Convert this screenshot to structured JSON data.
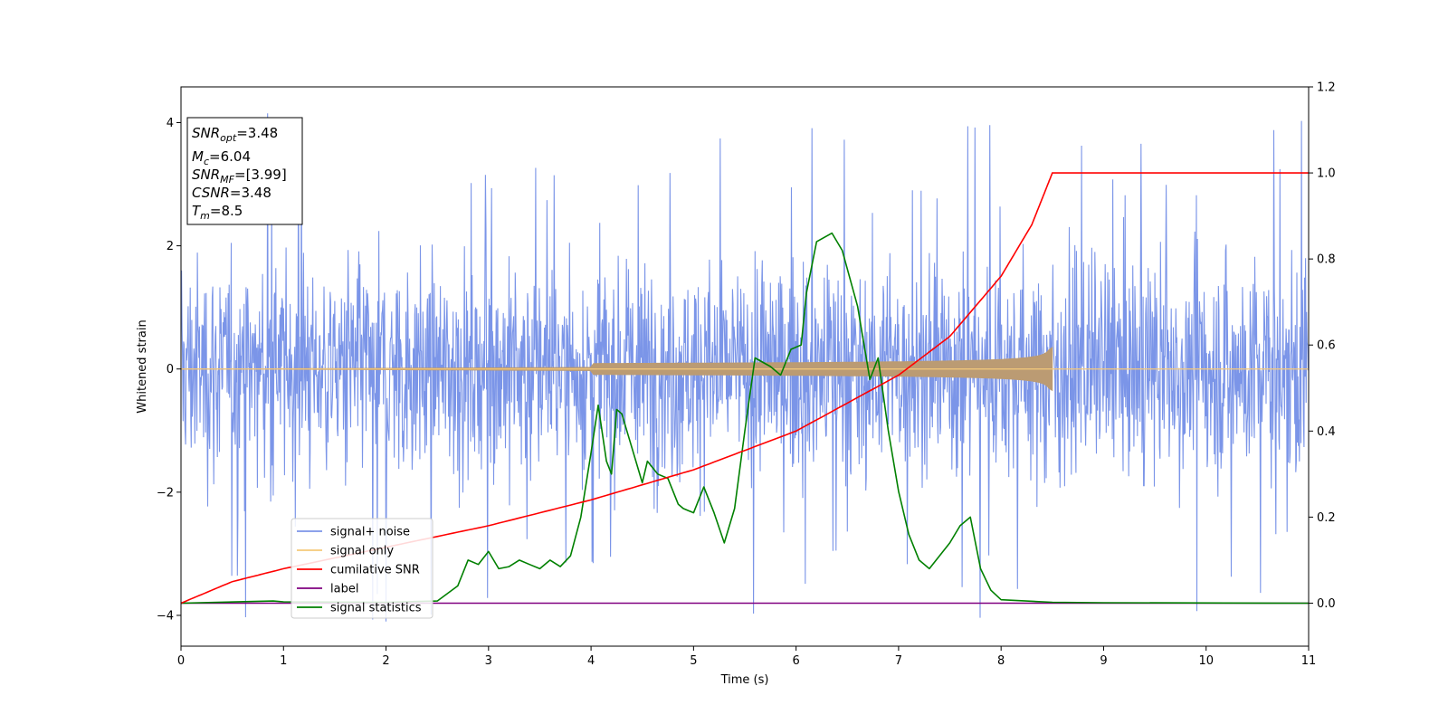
{
  "chart_data": {
    "type": "line",
    "title": "",
    "xlabel": "Time (s)",
    "ylabel": "Whitened strain",
    "xlim": [
      0,
      11
    ],
    "ylim": [
      -4.5,
      4.58
    ],
    "y2lim": [
      -0.1,
      1.2
    ],
    "x_ticks": [
      "0",
      "1",
      "2",
      "3",
      "4",
      "5",
      "6",
      "7",
      "8",
      "9",
      "10",
      "11"
    ],
    "y_ticks": [
      "−4",
      "−2",
      "0",
      "2",
      "4"
    ],
    "y2_ticks": [
      "0.0",
      "0.2",
      "0.4",
      "0.6",
      "0.8",
      "1.0",
      "1.2"
    ],
    "grid": false,
    "legend_position": "lower-left",
    "series": [
      {
        "name": "signal+ noise",
        "color": "#7b95e8",
        "axis": "left",
        "kind": "noise",
        "typical_amplitude": [
          -2.0,
          2.0
        ],
        "peak_max": 4.2,
        "peak_min": -4.1
      },
      {
        "name": "signal only",
        "color": "#f5c97a",
        "axis": "left",
        "kind": "chirp",
        "start": 0,
        "end": 8.5,
        "amplitude_at_end": 0.35
      },
      {
        "name": "cumilative SNR",
        "color": "#ff0000",
        "axis": "right",
        "x": [
          0,
          0.5,
          1,
          2,
          3,
          4,
          5,
          6,
          7,
          7.5,
          8,
          8.3,
          8.45,
          8.5,
          11
        ],
        "y": [
          0.0,
          0.05,
          0.08,
          0.13,
          0.18,
          0.24,
          0.31,
          0.4,
          0.53,
          0.62,
          0.76,
          0.88,
          0.97,
          1.0,
          1.0
        ]
      },
      {
        "name": "label",
        "color": "#800080",
        "axis": "right",
        "x": [
          0,
          11
        ],
        "y": [
          0,
          0
        ]
      },
      {
        "name": "signal statistics",
        "color": "#008000",
        "axis": "right",
        "x": [
          0,
          0.9,
          1,
          2,
          2.5,
          2.7,
          2.8,
          2.9,
          3.0,
          3.1,
          3.2,
          3.3,
          3.4,
          3.5,
          3.6,
          3.7,
          3.8,
          3.9,
          4.0,
          4.07,
          4.15,
          4.2,
          4.25,
          4.3,
          4.4,
          4.5,
          4.55,
          4.65,
          4.75,
          4.85,
          4.9,
          5.0,
          5.1,
          5.2,
          5.3,
          5.4,
          5.5,
          5.6,
          5.75,
          5.85,
          5.95,
          6.05,
          6.1,
          6.2,
          6.35,
          6.45,
          6.6,
          6.72,
          6.8,
          6.9,
          7.0,
          7.1,
          7.2,
          7.3,
          7.5,
          7.6,
          7.7,
          7.8,
          7.9,
          8.0,
          8.5,
          9,
          11
        ],
        "y": [
          0.0,
          0.005,
          0.003,
          0.002,
          0.005,
          0.04,
          0.1,
          0.09,
          0.12,
          0.08,
          0.085,
          0.1,
          0.09,
          0.08,
          0.1,
          0.085,
          0.11,
          0.2,
          0.35,
          0.46,
          0.33,
          0.3,
          0.45,
          0.44,
          0.36,
          0.28,
          0.33,
          0.3,
          0.29,
          0.23,
          0.22,
          0.21,
          0.27,
          0.21,
          0.14,
          0.22,
          0.4,
          0.57,
          0.55,
          0.53,
          0.59,
          0.6,
          0.72,
          0.84,
          0.86,
          0.82,
          0.69,
          0.52,
          0.57,
          0.4,
          0.26,
          0.16,
          0.1,
          0.08,
          0.14,
          0.18,
          0.2,
          0.08,
          0.03,
          0.008,
          0.002,
          0.001,
          0.0
        ]
      }
    ],
    "annotations": {
      "snr_opt": "=3.48",
      "mc": "=6.04",
      "snr_mf": "=[3.99]",
      "csnr": "=3.48",
      "tm": "=8.5"
    }
  }
}
